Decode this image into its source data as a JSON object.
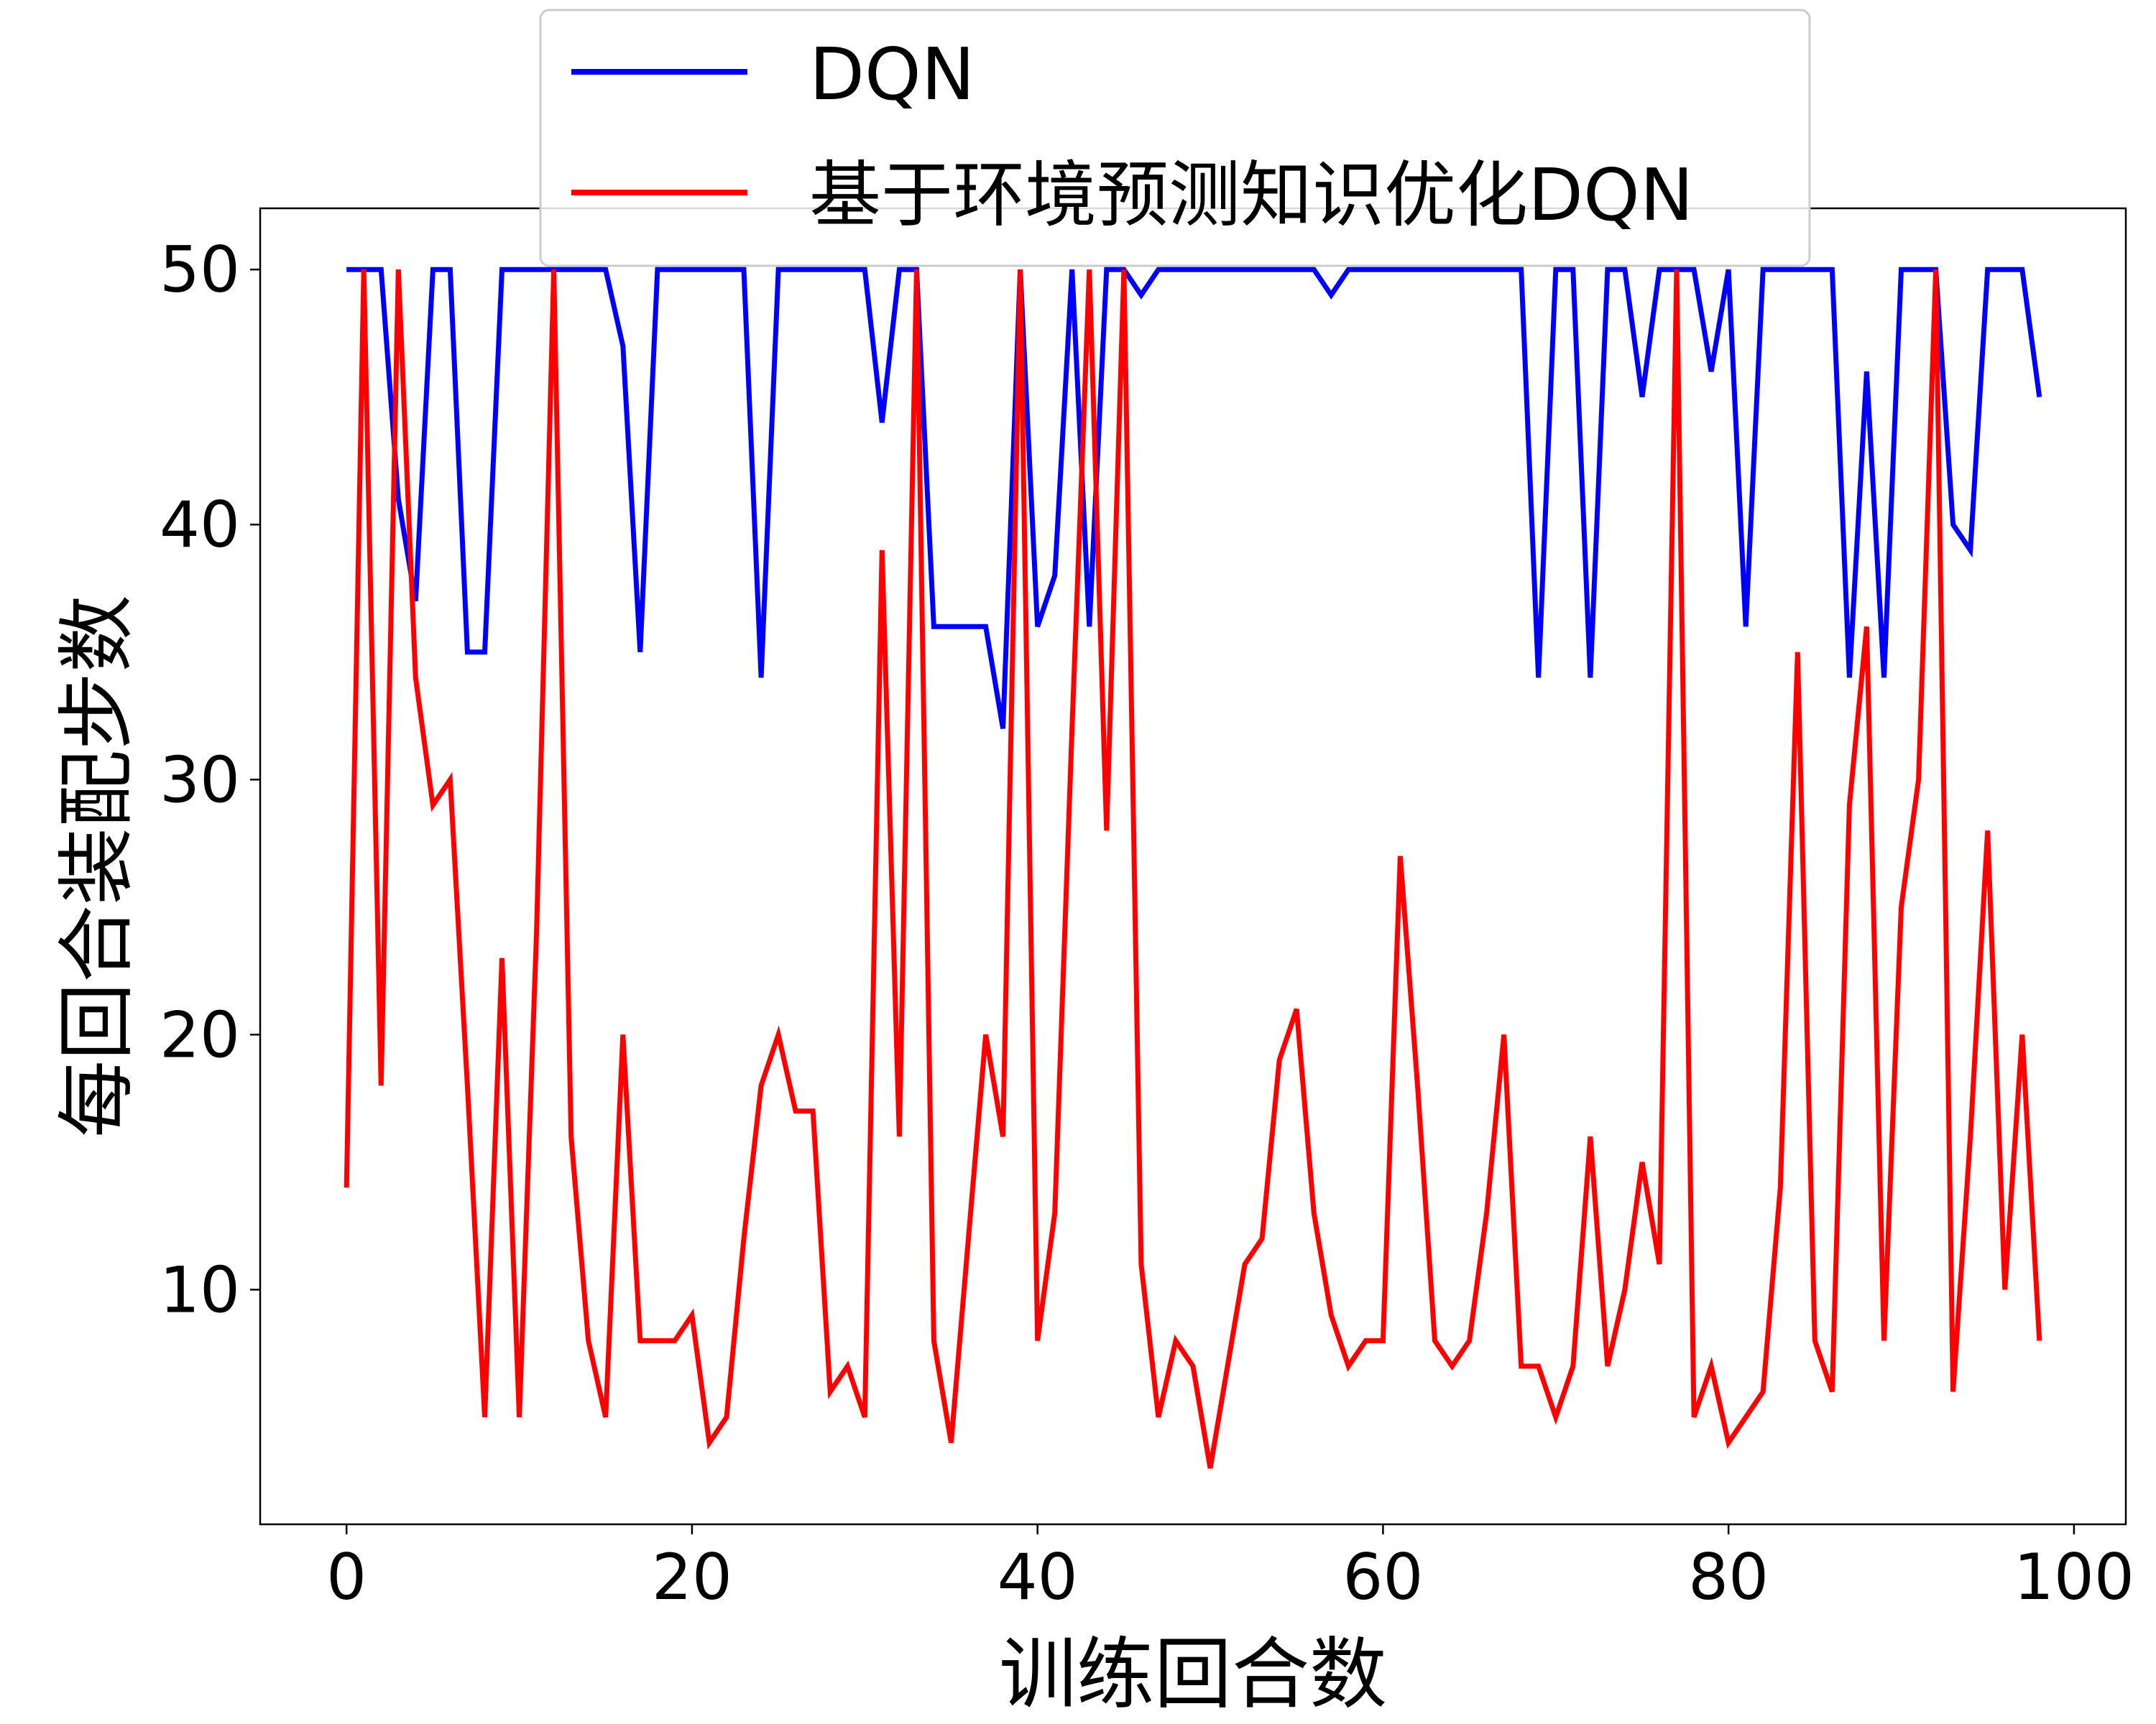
{
  "chart_data": {
    "type": "line",
    "xlabel": "训练回合数",
    "ylabel": "每回合装配步数",
    "xlim": [
      -5,
      103
    ],
    "ylim": [
      0.8,
      52.4
    ],
    "xticks": [
      0,
      20,
      40,
      60,
      80,
      100
    ],
    "yticks": [
      10,
      20,
      30,
      40,
      50
    ],
    "grid": false,
    "legend_position": "upper-center",
    "series": [
      {
        "name": "DQN",
        "color": "#0000ff",
        "values": [
          50,
          50,
          50,
          41,
          37,
          50,
          50,
          35,
          35,
          50,
          50,
          50,
          50,
          50,
          50,
          50,
          47,
          35,
          50,
          50,
          50,
          50,
          50,
          50,
          34,
          50,
          50,
          50,
          50,
          50,
          50,
          44,
          50,
          50,
          36,
          36,
          36,
          36,
          32,
          50,
          36,
          38,
          50,
          36,
          50,
          50,
          49,
          50,
          50,
          50,
          50,
          50,
          50,
          50,
          50,
          50,
          50,
          49,
          50,
          50,
          50,
          50,
          50,
          50,
          50,
          50,
          50,
          50,
          50,
          34,
          50,
          50,
          34,
          50,
          50,
          45,
          50,
          50,
          50,
          46,
          50,
          36,
          50,
          50,
          50,
          50,
          50,
          34,
          46,
          34,
          50,
          50,
          50,
          40,
          39,
          50,
          50,
          50,
          45
        ]
      },
      {
        "name": "基于环境预测知识优化DQN",
        "color": "#ff0000",
        "values": [
          14,
          50,
          18,
          50,
          34,
          29,
          30,
          18,
          5,
          23,
          5,
          24,
          50,
          16,
          8,
          5,
          20,
          8,
          8,
          8,
          9,
          4,
          5,
          12,
          18,
          20,
          17,
          17,
          6,
          7,
          5,
          39,
          16,
          50,
          8,
          4,
          12,
          20,
          16,
          50,
          8,
          13,
          32,
          50,
          28,
          50,
          11,
          5,
          8,
          7,
          3,
          7,
          11,
          12,
          19,
          21,
          13,
          9,
          7,
          8,
          8,
          27,
          18,
          8,
          7,
          8,
          13,
          20,
          7,
          7,
          5,
          7,
          16,
          7,
          10,
          15,
          11,
          50,
          5,
          7,
          4,
          5,
          6,
          14,
          35,
          8,
          6,
          29,
          36,
          8,
          25,
          30,
          50,
          6,
          16,
          28,
          10,
          20,
          8
        ]
      }
    ]
  }
}
